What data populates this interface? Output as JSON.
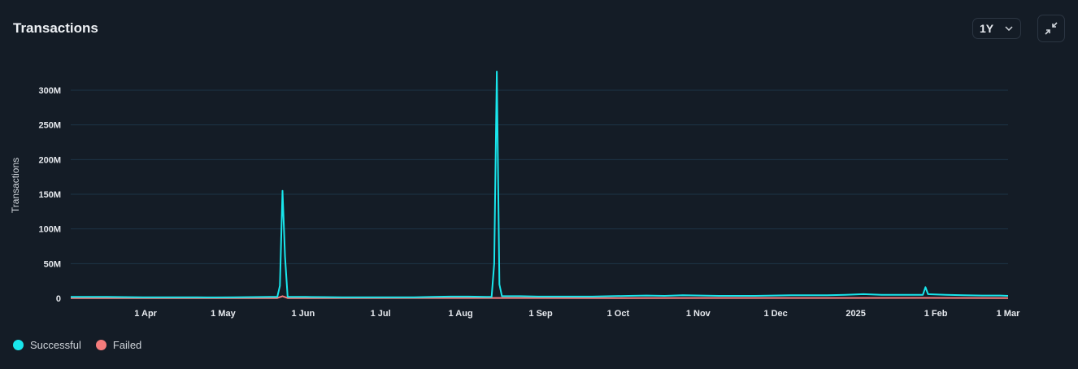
{
  "header": {
    "title": "Transactions",
    "range_label": "1Y"
  },
  "icons": {
    "range": "chevron-down-icon",
    "collapse": "collapse-arrows-icon"
  },
  "colors": {
    "successful": "#19e6ec",
    "failed": "#f47c7c",
    "grid": "#1d3447",
    "background": "#141c26"
  },
  "chart_data": {
    "type": "line",
    "title": "",
    "ylabel": "Transactions",
    "xlabel": "",
    "ylim": [
      0,
      300000000
    ],
    "xlim": [
      "2024-03-03",
      "2025-03-01"
    ],
    "grid": true,
    "legend_position": "bottom-left",
    "y_ticks": [
      {
        "value": 0,
        "label": "0"
      },
      {
        "value": 50000000,
        "label": "50M"
      },
      {
        "value": 100000000,
        "label": "100M"
      },
      {
        "value": 150000000,
        "label": "150M"
      },
      {
        "value": 200000000,
        "label": "200M"
      },
      {
        "value": 250000000,
        "label": "250M"
      },
      {
        "value": 300000000,
        "label": "300M"
      }
    ],
    "x_ticks": [
      {
        "date": "2024-04-01",
        "label": "1 Apr"
      },
      {
        "date": "2024-05-01",
        "label": "1 May"
      },
      {
        "date": "2024-06-01",
        "label": "1 Jun"
      },
      {
        "date": "2024-07-01",
        "label": "1 Jul"
      },
      {
        "date": "2024-08-01",
        "label": "1 Aug"
      },
      {
        "date": "2024-09-01",
        "label": "1 Sep"
      },
      {
        "date": "2024-10-01",
        "label": "1 Oct"
      },
      {
        "date": "2024-11-01",
        "label": "1 Nov"
      },
      {
        "date": "2024-12-01",
        "label": "1 Dec"
      },
      {
        "date": "2025-01-01",
        "label": "2025"
      },
      {
        "date": "2025-02-01",
        "label": "1 Feb"
      },
      {
        "date": "2025-03-01",
        "label": "1 Mar"
      }
    ],
    "series": [
      {
        "name": "Successful",
        "color": "#19e6ec",
        "points": [
          [
            "2024-03-03",
            2000000
          ],
          [
            "2024-03-10",
            2000000
          ],
          [
            "2024-03-17",
            2000000
          ],
          [
            "2024-03-24",
            1800000
          ],
          [
            "2024-03-31",
            1500000
          ],
          [
            "2024-04-07",
            1500000
          ],
          [
            "2024-04-14",
            1500000
          ],
          [
            "2024-04-21",
            1400000
          ],
          [
            "2024-04-28",
            1300000
          ],
          [
            "2024-05-05",
            1500000
          ],
          [
            "2024-05-12",
            1800000
          ],
          [
            "2024-05-19",
            2000000
          ],
          [
            "2024-05-22",
            2000000
          ],
          [
            "2024-05-23",
            18000000
          ],
          [
            "2024-05-24",
            155000000
          ],
          [
            "2024-05-25",
            60000000
          ],
          [
            "2024-05-26",
            2000000
          ],
          [
            "2024-06-02",
            2000000
          ],
          [
            "2024-06-09",
            1800000
          ],
          [
            "2024-06-16",
            1500000
          ],
          [
            "2024-06-23",
            1500000
          ],
          [
            "2024-06-30",
            1500000
          ],
          [
            "2024-07-07",
            1500000
          ],
          [
            "2024-07-14",
            1500000
          ],
          [
            "2024-07-21",
            2000000
          ],
          [
            "2024-07-28",
            2500000
          ],
          [
            "2024-08-04",
            2500000
          ],
          [
            "2024-08-11",
            2000000
          ],
          [
            "2024-08-13",
            2000000
          ],
          [
            "2024-08-14",
            50000000
          ],
          [
            "2024-08-15",
            327000000
          ],
          [
            "2024-08-16",
            20000000
          ],
          [
            "2024-08-17",
            3000000
          ],
          [
            "2024-08-24",
            3000000
          ],
          [
            "2024-08-31",
            2500000
          ],
          [
            "2024-09-07",
            2500000
          ],
          [
            "2024-09-14",
            2500000
          ],
          [
            "2024-09-21",
            2500000
          ],
          [
            "2024-09-28",
            3000000
          ],
          [
            "2024-10-05",
            3500000
          ],
          [
            "2024-10-12",
            4000000
          ],
          [
            "2024-10-19",
            3500000
          ],
          [
            "2024-10-26",
            4500000
          ],
          [
            "2024-11-02",
            4000000
          ],
          [
            "2024-11-09",
            3500000
          ],
          [
            "2024-11-16",
            3500000
          ],
          [
            "2024-11-23",
            3500000
          ],
          [
            "2024-11-30",
            4000000
          ],
          [
            "2024-12-07",
            4500000
          ],
          [
            "2024-12-14",
            4500000
          ],
          [
            "2024-12-21",
            4500000
          ],
          [
            "2024-12-28",
            5000000
          ],
          [
            "2025-01-04",
            6000000
          ],
          [
            "2025-01-11",
            5000000
          ],
          [
            "2025-01-18",
            5000000
          ],
          [
            "2025-01-25",
            5000000
          ],
          [
            "2025-01-27",
            5000000
          ],
          [
            "2025-01-28",
            16000000
          ],
          [
            "2025-01-29",
            6000000
          ],
          [
            "2025-02-05",
            5000000
          ],
          [
            "2025-02-12",
            4500000
          ],
          [
            "2025-02-19",
            4000000
          ],
          [
            "2025-02-26",
            4000000
          ],
          [
            "2025-03-01",
            3500000
          ]
        ]
      },
      {
        "name": "Failed",
        "color": "#f47c7c",
        "points": [
          [
            "2024-03-03",
            300000
          ],
          [
            "2024-05-22",
            300000
          ],
          [
            "2024-05-24",
            3000000
          ],
          [
            "2024-05-26",
            300000
          ],
          [
            "2024-08-15",
            500000
          ],
          [
            "2024-10-01",
            400000
          ],
          [
            "2025-01-28",
            600000
          ],
          [
            "2025-03-01",
            400000
          ]
        ]
      }
    ]
  },
  "legend": [
    {
      "label": "Successful",
      "color": "#19e6ec"
    },
    {
      "label": "Failed",
      "color": "#f47c7c"
    }
  ]
}
